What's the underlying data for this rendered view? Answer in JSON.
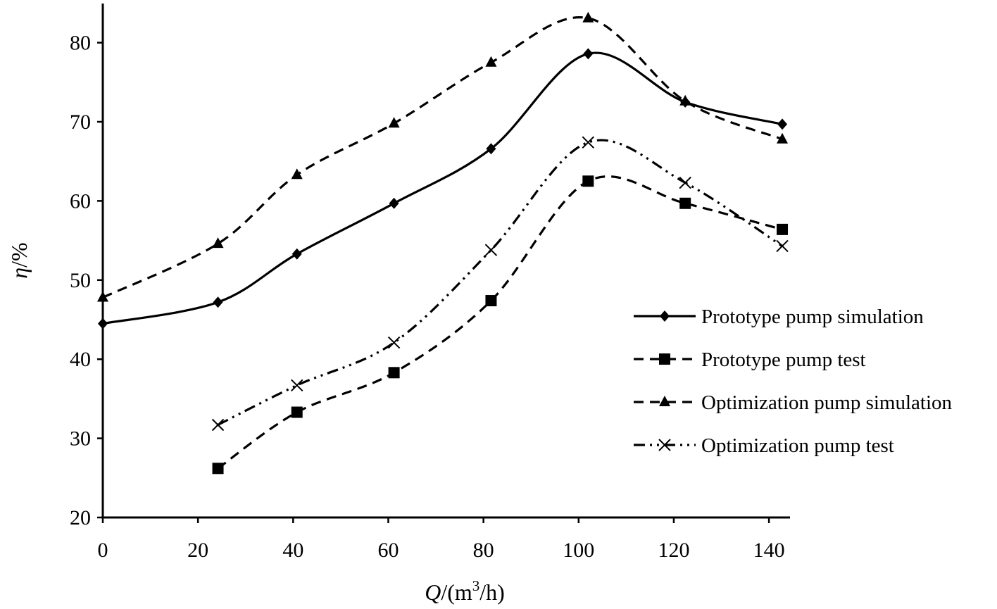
{
  "chart_data": {
    "type": "line",
    "title": "",
    "xlabel": {
      "italic": "Q",
      "pre": "/(m",
      "sup": "3",
      "post": "/h)"
    },
    "ylabel": {
      "italic": "η",
      "rest": "/%"
    },
    "xlim": [
      0,
      145
    ],
    "ylim": [
      20,
      85
    ],
    "xticks": [
      0,
      20,
      40,
      60,
      80,
      100,
      120,
      140
    ],
    "yticks": [
      20,
      30,
      40,
      50,
      60,
      70,
      80
    ],
    "legend_position": "right",
    "series": [
      {
        "name": "Prototype pump simulation",
        "marker": "diamond",
        "dash": "solid",
        "x": [
          0,
          24.2,
          40.8,
          61.2,
          81.6,
          102,
          122.4,
          142.8
        ],
        "y": [
          44.5,
          47.2,
          53.3,
          59.7,
          66.6,
          78.6,
          72.5,
          69.7
        ]
      },
      {
        "name": "Prototype pump test",
        "marker": "square",
        "dash": "dashed",
        "x": [
          24.2,
          40.8,
          61.2,
          81.6,
          102,
          122.4,
          142.8
        ],
        "y": [
          26.2,
          33.3,
          38.3,
          47.4,
          62.5,
          59.7,
          56.4
        ]
      },
      {
        "name": "Optimization pump simulation",
        "marker": "triangle",
        "dash": "dashed",
        "x": [
          0,
          24.2,
          40.8,
          61.2,
          81.6,
          102,
          122.4,
          142.8
        ],
        "y": [
          47.8,
          54.6,
          63.3,
          69.8,
          77.5,
          83.1,
          72.6,
          67.8
        ]
      },
      {
        "name": "Optimization pump test",
        "marker": "x",
        "dash": "dash-dot-dot",
        "x": [
          24.2,
          40.8,
          61.2,
          81.6,
          102,
          122.4,
          142.8
        ],
        "y": [
          31.7,
          36.7,
          42.1,
          53.8,
          67.4,
          62.3,
          54.3
        ]
      }
    ]
  }
}
